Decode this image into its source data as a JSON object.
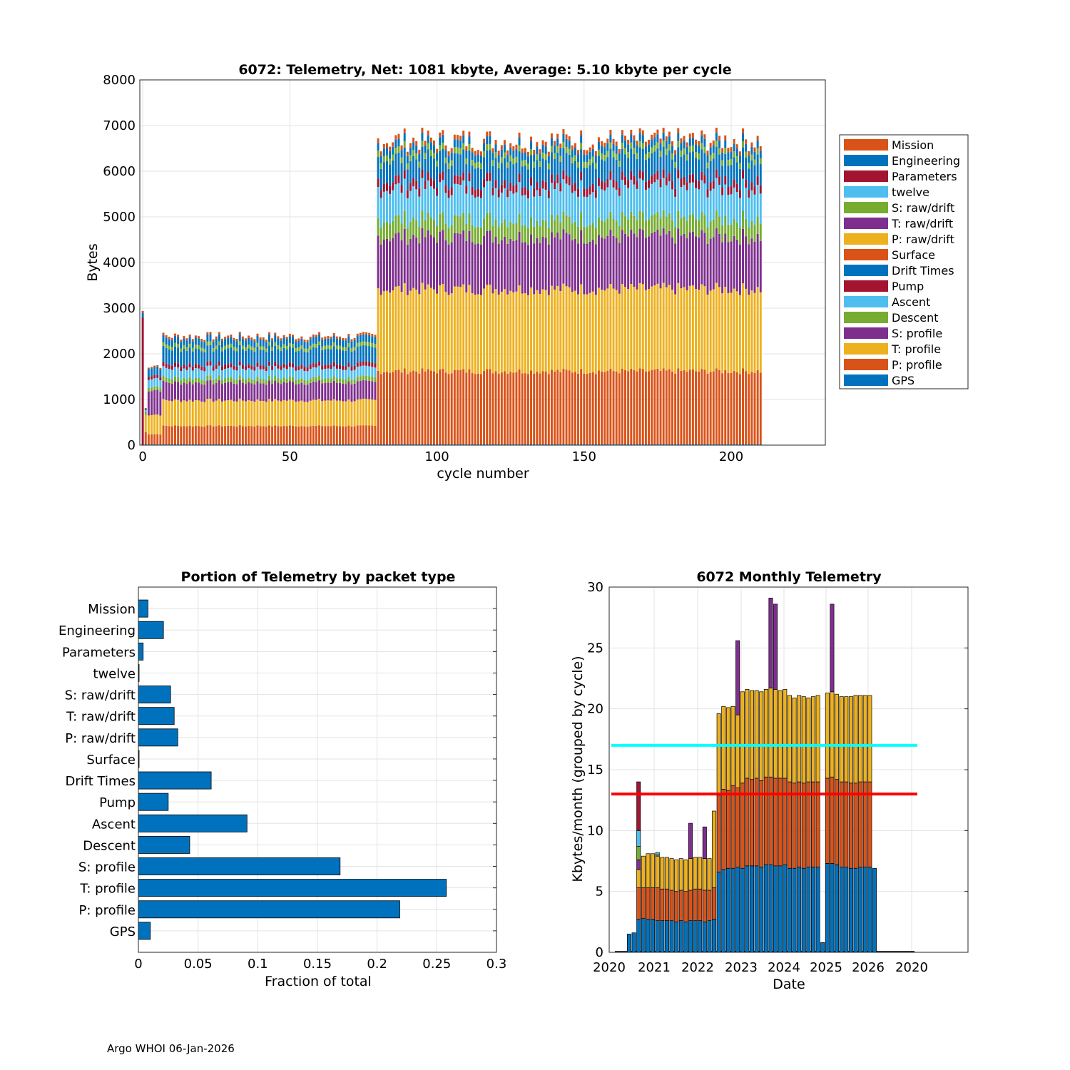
{
  "footer": "Argo WHOI 06-Jan-2026",
  "colors": {
    "mission": "#D95319",
    "engineering": "#0072BD",
    "parameters": "#A2142F",
    "twelve": "#4DBEEE",
    "s_raw": "#77AC30",
    "t_raw": "#7E2F8E",
    "p_raw": "#EDB120",
    "surface": "#D95319",
    "drift": "#0072BD",
    "pump": "#A2142F",
    "ascent": "#4DBEEE",
    "descent": "#77AC30",
    "s_prof": "#7E2F8E",
    "t_prof": "#EDB120",
    "p_prof": "#D95319",
    "gps": "#0072BD",
    "cyan_line": "#00FFFF",
    "red_line": "#FF0000"
  },
  "chart_data": [
    {
      "id": "telemetry-by-cycle",
      "type": "bar",
      "stacked": true,
      "title": "6072: Telemetry, Net:   1081 kbyte,  Average: 5.10 kbyte per cycle",
      "xlabel": "cycle number",
      "ylabel": "Bytes",
      "xlim": [
        -1,
        232
      ],
      "ylim": [
        0,
        8000
      ],
      "xticks": [
        0,
        50,
        100,
        150,
        200
      ],
      "yticks": [
        0,
        1000,
        2000,
        3000,
        4000,
        5000,
        6000,
        7000,
        8000
      ],
      "grid": true,
      "legend_position": "outside-right",
      "legend": [
        "Mission",
        "Engineering",
        "Parameters",
        "twelve",
        "S: raw/drift",
        "T: raw/drift",
        "P: raw/drift",
        "Surface",
        "Drift Times",
        "Pump",
        "Ascent",
        "Descent",
        "S: profile",
        "T: profile",
        "P: profile",
        "GPS"
      ],
      "series_colors": [
        "#D95319",
        "#0072BD",
        "#A2142F",
        "#4DBEEE",
        "#77AC30",
        "#7E2F8E",
        "#EDB120",
        "#D95319",
        "#0072BD",
        "#A2142F",
        "#4DBEEE",
        "#77AC30",
        "#7E2F8E",
        "#EDB120",
        "#D95319",
        "#0072BD"
      ],
      "stack_order_bottom_up": [
        "GPS",
        "P: profile",
        "T: profile",
        "S: profile",
        "Descent",
        "Ascent",
        "Pump",
        "Drift Times",
        "Surface",
        "P: raw/drift",
        "T: raw/drift",
        "S: raw/drift",
        "twelve",
        "Parameters",
        "Engineering",
        "Mission"
      ],
      "cycles_x": [
        0,
        210
      ],
      "segments_note": "approx. component bytes per cycle by phase (bottom-up order), read from chart",
      "phases": [
        {
          "cycles": [
            0,
            0
          ],
          "components": {
            "Parameters": 2800,
            "Engineering": 100,
            "Mission": 40
          }
        },
        {
          "cycles": [
            1,
            1
          ],
          "components": {
            "GPS": 20,
            "P: profile": 260,
            "T: profile": 380,
            "S: profile": 0,
            "Descent": 60,
            "Ascent": 40,
            "Engineering": 30,
            "Mission": 20
          }
        },
        {
          "cycles": [
            2,
            6
          ],
          "components": {
            "GPS": 20,
            "P: profile": 220,
            "T: profile": 430,
            "S: profile": 540,
            "Descent": 80,
            "Ascent": 180,
            "Pump": 70,
            "Drift Times": 110,
            "Engineering": 70,
            "Mission": 30
          }
        },
        {
          "cycles": [
            7,
            79
          ],
          "components": {
            "GPS": 20,
            "P: profile": 400,
            "T: profile": 560,
            "S: profile": 390,
            "Descent": 100,
            "Ascent": 210,
            "Pump": 90,
            "Drift Times": 340,
            "S: raw/drift": 80,
            "T: raw/drift": 0,
            "P: raw/drift": 0,
            "Engineering": 150,
            "Mission": 50
          }
        },
        {
          "cycles": [
            80,
            210
          ],
          "components": {
            "GPS": 20,
            "P: profile": 1600,
            "T: profile": 1800,
            "S: profile": 1150,
            "Descent": 380,
            "Ascent": 680,
            "Pump": 180,
            "Drift Times": 480,
            "S: raw/drift": 130,
            "Engineering": 170,
            "Mission": 100
          }
        }
      ]
    },
    {
      "id": "portion-by-packet-type",
      "type": "bar",
      "orientation": "horizontal",
      "title": "Portion of Telemetry by packet type",
      "xlabel": "Fraction of total",
      "ylabel": "",
      "xlim": [
        0,
        0.3
      ],
      "xticks": [
        0,
        0.05,
        0.1,
        0.15,
        0.2,
        0.25,
        0.3
      ],
      "xtick_labels": [
        "0",
        "0.05",
        "0.1",
        "0.15",
        "0.2",
        "0.25",
        "0.3"
      ],
      "grid": true,
      "categories": [
        "Mission",
        "Engineering",
        "Parameters",
        "twelve",
        "S: raw/drift",
        "T: raw/drift",
        "P: raw/drift",
        "Surface",
        "Drift Times",
        "Pump",
        "Ascent",
        "Descent",
        "S: profile",
        "T: profile",
        "P: profile",
        "GPS"
      ],
      "values": [
        0.008,
        0.021,
        0.004,
        0.0005,
        0.027,
        0.03,
        0.033,
        0.0005,
        0.061,
        0.025,
        0.091,
        0.043,
        0.169,
        0.258,
        0.219,
        0.01
      ],
      "bar_color": "#0072BD"
    },
    {
      "id": "monthly-telemetry",
      "type": "bar",
      "stacked": true,
      "title": "6072 Monthly Telemetry",
      "xlabel": "Date",
      "ylabel": "Kbytes/month (grouped by cycle)",
      "ylim": [
        0,
        30
      ],
      "yticks": [
        0,
        5,
        10,
        15,
        20,
        25,
        30
      ],
      "xtick_labels": [
        "2020",
        "2021",
        "2022",
        "2023",
        "2024",
        "2025",
        "2026",
        "2020"
      ],
      "grid": true,
      "hlines": [
        {
          "y": 17,
          "color": "#00FFFF"
        },
        {
          "y": 13,
          "color": "#FF0000"
        }
      ],
      "stack_colors_bottom_up": [
        "#0072BD",
        "#D95319",
        "#EDB120",
        "#7E2F8E",
        "#77AC30",
        "#4DBEEE",
        "#A2142F"
      ],
      "months_note": "approx. stacked monthly totals [blue, orange, yellow, purple, green, lightblue, darkred]",
      "months": [
        [
          1.5
        ],
        [
          1.6
        ],
        [
          2.7,
          2.6,
          1.5,
          0.8,
          1.1,
          1.3,
          4.0
        ],
        [
          2.8,
          2.5,
          2.6
        ],
        [
          2.7,
          2.6,
          2.8
        ],
        [
          2.7,
          2.6,
          2.8
        ],
        [
          2.6,
          2.7,
          2.6,
          0,
          0.1,
          0.2,
          0
        ],
        [
          2.6,
          2.6,
          2.6
        ],
        [
          2.6,
          2.6,
          2.6
        ],
        [
          2.6,
          2.5,
          2.6
        ],
        [
          2.5,
          2.5,
          2.6
        ],
        [
          2.6,
          2.5,
          2.6
        ],
        [
          2.5,
          2.5,
          2.6
        ],
        [
          2.6,
          2.5,
          2.6,
          2.9
        ],
        [
          2.6,
          2.6,
          2.6
        ],
        [
          2.6,
          2.6,
          2.6
        ],
        [
          2.5,
          2.6,
          2.6,
          2.6
        ],
        [
          2.6,
          2.5,
          2.6
        ],
        [
          2.7,
          2.6,
          6.3
        ],
        [
          6.6,
          6.3,
          6.7
        ],
        [
          6.8,
          6.6,
          6.8
        ],
        [
          6.9,
          6.4,
          6.8
        ],
        [
          6.9,
          6.8,
          6.5
        ],
        [
          7.0,
          6.5,
          6.0,
          6.1
        ],
        [
          6.9,
          7.0,
          7.5
        ],
        [
          7.1,
          7.2,
          7.3
        ],
        [
          7.1,
          7.1,
          7.3
        ],
        [
          7.1,
          7.2,
          7.2
        ],
        [
          7.0,
          7.1,
          7.3
        ],
        [
          7.2,
          7.2,
          7.2
        ],
        [
          7.2,
          7.2,
          7.3,
          7.4
        ],
        [
          7.1,
          7.2,
          7.3,
          7.0
        ],
        [
          7.1,
          7.2,
          7.2
        ],
        [
          7.2,
          7.1,
          7.3
        ],
        [
          6.9,
          7.1,
          7.1
        ],
        [
          6.9,
          7.0,
          7.0
        ],
        [
          7.0,
          7.0,
          7.1
        ],
        [
          6.9,
          7.0,
          7.1
        ],
        [
          7.0,
          7.0,
          6.9
        ],
        [
          7.0,
          7.0,
          7.0
        ],
        [
          7.0,
          7.0,
          7.1
        ],
        [
          0.8
        ],
        [
          7.3,
          7.0,
          7.0
        ],
        [
          7.3,
          7.1,
          7.0,
          7.2
        ],
        [
          7.2,
          7.0,
          7.0
        ],
        [
          7.0,
          7.0,
          7.0
        ],
        [
          7.0,
          7.0,
          7.0
        ],
        [
          6.9,
          7.0,
          7.1
        ],
        [
          6.9,
          7.0,
          7.2
        ],
        [
          7.0,
          7.0,
          7.1
        ],
        [
          7.0,
          7.0,
          7.1
        ],
        [
          7.0,
          7.0,
          7.1
        ],
        [
          6.9
        ]
      ]
    }
  ]
}
